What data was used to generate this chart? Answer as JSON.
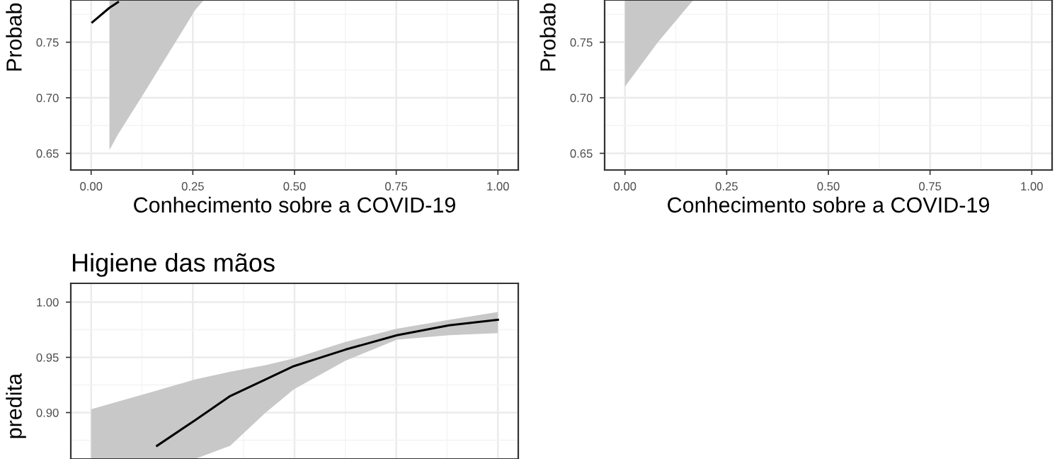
{
  "chart_data": [
    {
      "type": "line",
      "xlabel": "Conhecimento sobre a COVID-19",
      "ylabel": "Probab",
      "xlim": [
        -0.05,
        1.05
      ],
      "ylim": [
        0.635,
        0.788
      ],
      "xticks": [
        {
          "value": 0,
          "label": "0.00"
        },
        {
          "value": 0.25,
          "label": "0.25"
        },
        {
          "value": 0.5,
          "label": "0.50"
        },
        {
          "value": 0.75,
          "label": "0.75"
        },
        {
          "value": 1,
          "label": "1.00"
        }
      ],
      "yticks": [
        {
          "value": 0.65,
          "label": "0.65"
        },
        {
          "value": 0.7,
          "label": "0.70"
        },
        {
          "value": 0.75,
          "label": "0.75"
        }
      ],
      "grid": true,
      "series": [
        {
          "color": "#000000",
          "x": [
            0.003,
            0.045,
            0.066,
            0.128,
            0.256,
            0.277
          ],
          "values": [
            0.768,
            0.781,
            0.786,
            null,
            null,
            null
          ],
          "lower": [
            null,
            0.653,
            0.667,
            0.703,
            0.779,
            0.788
          ],
          "upper": [
            null,
            0.788,
            0.788,
            0.788,
            0.788,
            0.788
          ]
        }
      ]
    },
    {
      "type": "line",
      "xlabel": "Conhecimento sobre a COVID-19",
      "ylabel": "Probab",
      "xlim": [
        -0.05,
        1.05
      ],
      "ylim": [
        0.635,
        0.788
      ],
      "xticks": [
        {
          "value": 0,
          "label": "0.00"
        },
        {
          "value": 0.25,
          "label": "0.25"
        },
        {
          "value": 0.5,
          "label": "0.50"
        },
        {
          "value": 0.75,
          "label": "0.75"
        },
        {
          "value": 1,
          "label": "1.00"
        }
      ],
      "yticks": [
        {
          "value": 0.65,
          "label": "0.65"
        },
        {
          "value": 0.7,
          "label": "0.70"
        },
        {
          "value": 0.75,
          "label": "0.75"
        }
      ],
      "grid": true,
      "series": [
        {
          "color": "#000000",
          "x": [
            0,
            0.081,
            0.168
          ],
          "values": [
            null,
            null,
            null
          ],
          "lower": [
            0.71,
            0.75,
            0.788
          ],
          "upper": [
            0.788,
            0.788,
            0.788
          ]
        }
      ]
    },
    {
      "type": "line",
      "title": "Higiene das mãos",
      "ylabel": "predita",
      "xlim": [
        -0.05,
        1.05
      ],
      "ylim": [
        0.858,
        1.017
      ],
      "xticks": [
        0,
        0.25,
        0.5,
        0.75,
        1
      ],
      "yticks": [
        {
          "value": 0.9,
          "label": "0.90"
        },
        {
          "value": 0.95,
          "label": "0.95"
        },
        {
          "value": 1,
          "label": "1.00"
        }
      ],
      "grid": true,
      "tick_labels": "y",
      "series": [
        {
          "color": "#000000",
          "x": [
            0,
            0.162,
            0.255,
            0.342,
            0.429,
            0.498,
            0.625,
            0.752,
            0.88,
            1.0
          ],
          "values": [
            null,
            0.87,
            0.893,
            0.915,
            0.93,
            0.942,
            0.957,
            0.97,
            0.979,
            0.984
          ],
          "lower": [
            0.858,
            0.858,
            0.858,
            0.87,
            0.9,
            0.921,
            0.947,
            0.966,
            0.97,
            0.972
          ],
          "upper": [
            0.903,
            0.92,
            0.93,
            0.937,
            0.943,
            0.949,
            0.964,
            0.976,
            0.984,
            0.991
          ]
        }
      ]
    }
  ]
}
